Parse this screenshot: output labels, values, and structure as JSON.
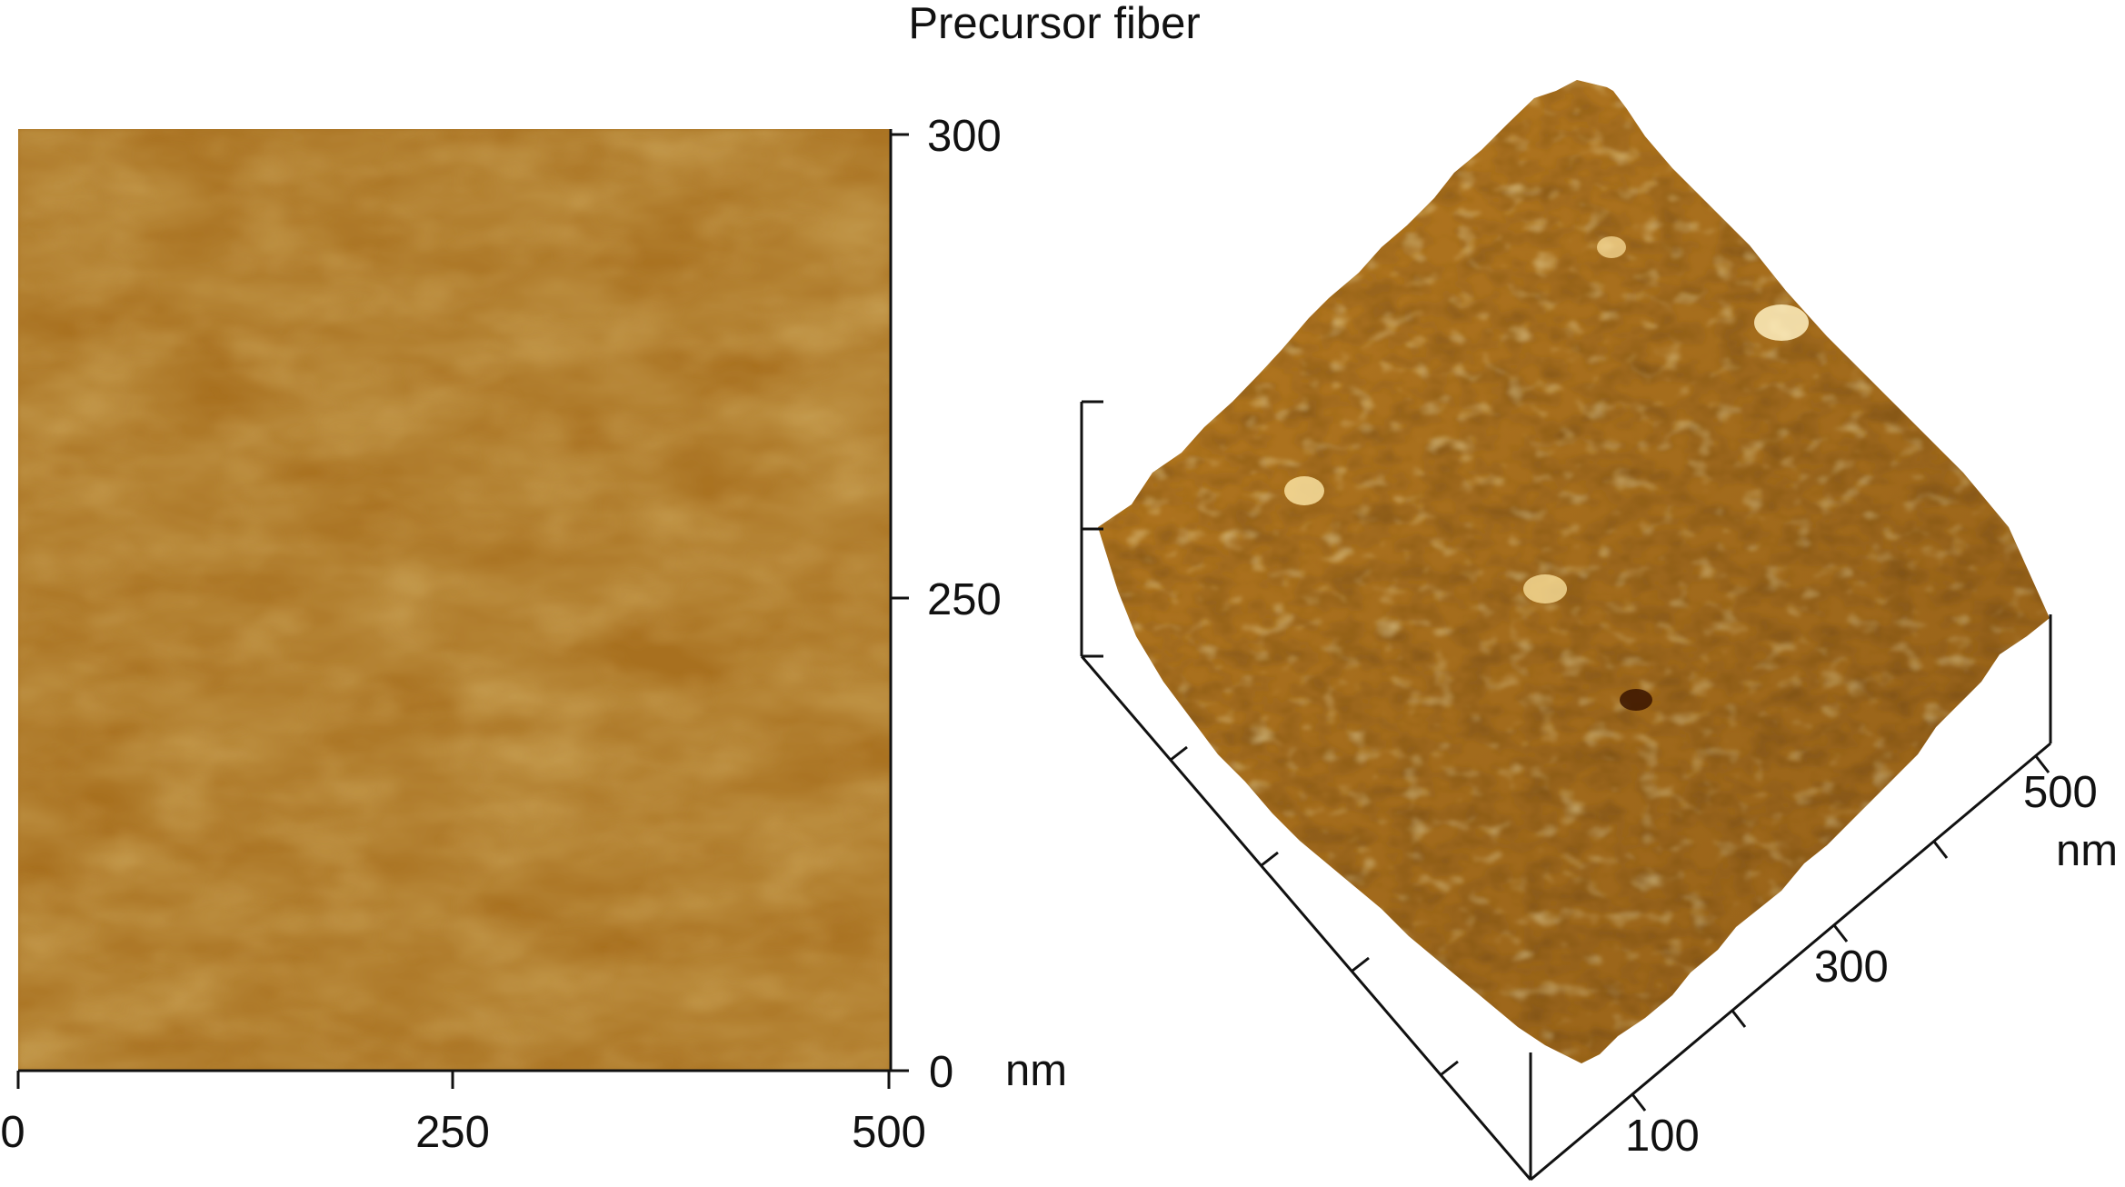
{
  "title": "Precursor fiber",
  "left_image": {
    "x_ticks": [
      "0",
      "250",
      "500"
    ],
    "y_ticks": [
      "300",
      "250",
      "0"
    ],
    "unit": "nm",
    "colormap": [
      "#5a2a06",
      "#8a4d12",
      "#a86a1f",
      "#c48c2e",
      "#e7c86a",
      "#fff2c4"
    ]
  },
  "right_image": {
    "axis_ticks": [
      "500",
      "300",
      "100"
    ],
    "unit": "nm"
  }
}
